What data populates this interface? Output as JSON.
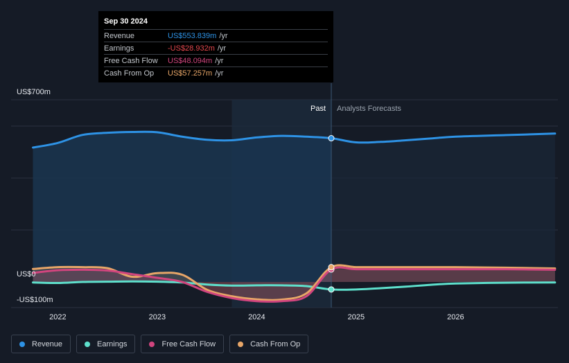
{
  "colors": {
    "background": "#151b26",
    "revenue": "#2e93e6",
    "earnings": "#5ee0cc",
    "free_cash_flow": "#d1457e",
    "cash_from_op": "#e8a668",
    "past_shade": "#1a3550"
  },
  "tooltip": {
    "date": "Sep 30 2024",
    "rows": [
      {
        "label": "Revenue",
        "value": "US$553.839m",
        "unit": "/yr",
        "color": "#2e93e6"
      },
      {
        "label": "Earnings",
        "value": "-US$28.932m",
        "unit": "/yr",
        "color": "#e5484d"
      },
      {
        "label": "Free Cash Flow",
        "value": "US$48.094m",
        "unit": "/yr",
        "color": "#d1457e"
      },
      {
        "label": "Cash From Op",
        "value": "US$57.257m",
        "unit": "/yr",
        "color": "#e8a668"
      }
    ]
  },
  "legend": [
    {
      "label": "Revenue",
      "color": "#2e93e6",
      "icon": "revenue-dot-icon"
    },
    {
      "label": "Earnings",
      "color": "#5ee0cc",
      "icon": "earnings-dot-icon"
    },
    {
      "label": "Free Cash Flow",
      "color": "#d1457e",
      "icon": "free-cash-flow-dot-icon"
    },
    {
      "label": "Cash From Op",
      "color": "#e8a668",
      "icon": "cash-from-op-dot-icon"
    }
  ],
  "chart_data": {
    "type": "line",
    "title": "",
    "ylim": [
      -100,
      700
    ],
    "y_tick_labels": [
      {
        "value": 700,
        "label": "US$700m"
      },
      {
        "value": 0,
        "label": "US$0"
      },
      {
        "value": -100,
        "label": "-US$100m"
      }
    ],
    "x_tick_labels": [
      {
        "value": 2022.0,
        "label": "2022"
      },
      {
        "value": 2023.0,
        "label": "2023"
      },
      {
        "value": 2024.0,
        "label": "2024"
      },
      {
        "value": 2025.0,
        "label": "2025"
      },
      {
        "value": 2026.0,
        "label": "2026"
      }
    ],
    "xlim": [
      2021.5,
      2027.0
    ],
    "divider_x": 2024.75,
    "highlight_start_x": 2023.75,
    "past_label": "Past",
    "forecast_label": "Analysts Forecasts",
    "grid": true,
    "legend_position": "bottom-left",
    "series": [
      {
        "name": "Revenue",
        "key": "revenue",
        "color": "#2e93e6",
        "points": [
          [
            2021.75,
            518
          ],
          [
            2022.0,
            536
          ],
          [
            2022.25,
            567
          ],
          [
            2022.5,
            575
          ],
          [
            2022.75,
            578
          ],
          [
            2023.0,
            577
          ],
          [
            2023.25,
            560
          ],
          [
            2023.5,
            548
          ],
          [
            2023.75,
            546
          ],
          [
            2024.0,
            557
          ],
          [
            2024.25,
            563
          ],
          [
            2024.5,
            560
          ],
          [
            2024.75,
            554
          ],
          [
            2025.0,
            538
          ],
          [
            2025.25,
            540
          ],
          [
            2025.5,
            546
          ],
          [
            2025.75,
            553
          ],
          [
            2026.0,
            560
          ],
          [
            2026.5,
            566
          ],
          [
            2027.0,
            572
          ]
        ]
      },
      {
        "name": "Earnings",
        "key": "earnings",
        "color": "#5ee0cc",
        "points": [
          [
            2021.75,
            -2
          ],
          [
            2022.0,
            -4
          ],
          [
            2022.25,
            0
          ],
          [
            2022.5,
            1
          ],
          [
            2022.75,
            2
          ],
          [
            2023.0,
            1
          ],
          [
            2023.25,
            -2
          ],
          [
            2023.5,
            -10
          ],
          [
            2023.75,
            -14
          ],
          [
            2024.0,
            -13
          ],
          [
            2024.25,
            -13
          ],
          [
            2024.5,
            -16
          ],
          [
            2024.75,
            -29
          ],
          [
            2025.0,
            -29
          ],
          [
            2025.25,
            -24
          ],
          [
            2025.5,
            -18
          ],
          [
            2025.75,
            -11
          ],
          [
            2026.0,
            -6
          ],
          [
            2026.5,
            -3
          ],
          [
            2027.0,
            -2
          ]
        ]
      },
      {
        "name": "Free Cash Flow",
        "key": "free_cash_flow",
        "color": "#d1457e",
        "points": [
          [
            2021.75,
            35
          ],
          [
            2022.0,
            45
          ],
          [
            2022.25,
            47
          ],
          [
            2022.5,
            44
          ],
          [
            2022.75,
            30
          ],
          [
            2023.0,
            16
          ],
          [
            2023.25,
            0
          ],
          [
            2023.5,
            -38
          ],
          [
            2023.75,
            -62
          ],
          [
            2024.0,
            -74
          ],
          [
            2024.25,
            -74
          ],
          [
            2024.5,
            -55
          ],
          [
            2024.75,
            48
          ],
          [
            2025.0,
            49
          ],
          [
            2025.25,
            49
          ],
          [
            2025.5,
            49
          ],
          [
            2025.75,
            49
          ],
          [
            2026.0,
            49
          ],
          [
            2026.5,
            49
          ],
          [
            2027.0,
            47
          ]
        ]
      },
      {
        "name": "Cash From Op",
        "key": "cash_from_op",
        "color": "#e8a668",
        "points": [
          [
            2021.75,
            50
          ],
          [
            2022.0,
            57
          ],
          [
            2022.25,
            57
          ],
          [
            2022.5,
            53
          ],
          [
            2022.75,
            20
          ],
          [
            2023.0,
            34
          ],
          [
            2023.25,
            28
          ],
          [
            2023.5,
            -30
          ],
          [
            2023.75,
            -55
          ],
          [
            2024.0,
            -67
          ],
          [
            2024.25,
            -68
          ],
          [
            2024.5,
            -44
          ],
          [
            2024.75,
            57
          ],
          [
            2025.0,
            57
          ],
          [
            2025.25,
            57
          ],
          [
            2025.5,
            57
          ],
          [
            2025.75,
            57
          ],
          [
            2026.0,
            57
          ],
          [
            2026.5,
            55
          ],
          [
            2027.0,
            52
          ]
        ]
      }
    ]
  }
}
